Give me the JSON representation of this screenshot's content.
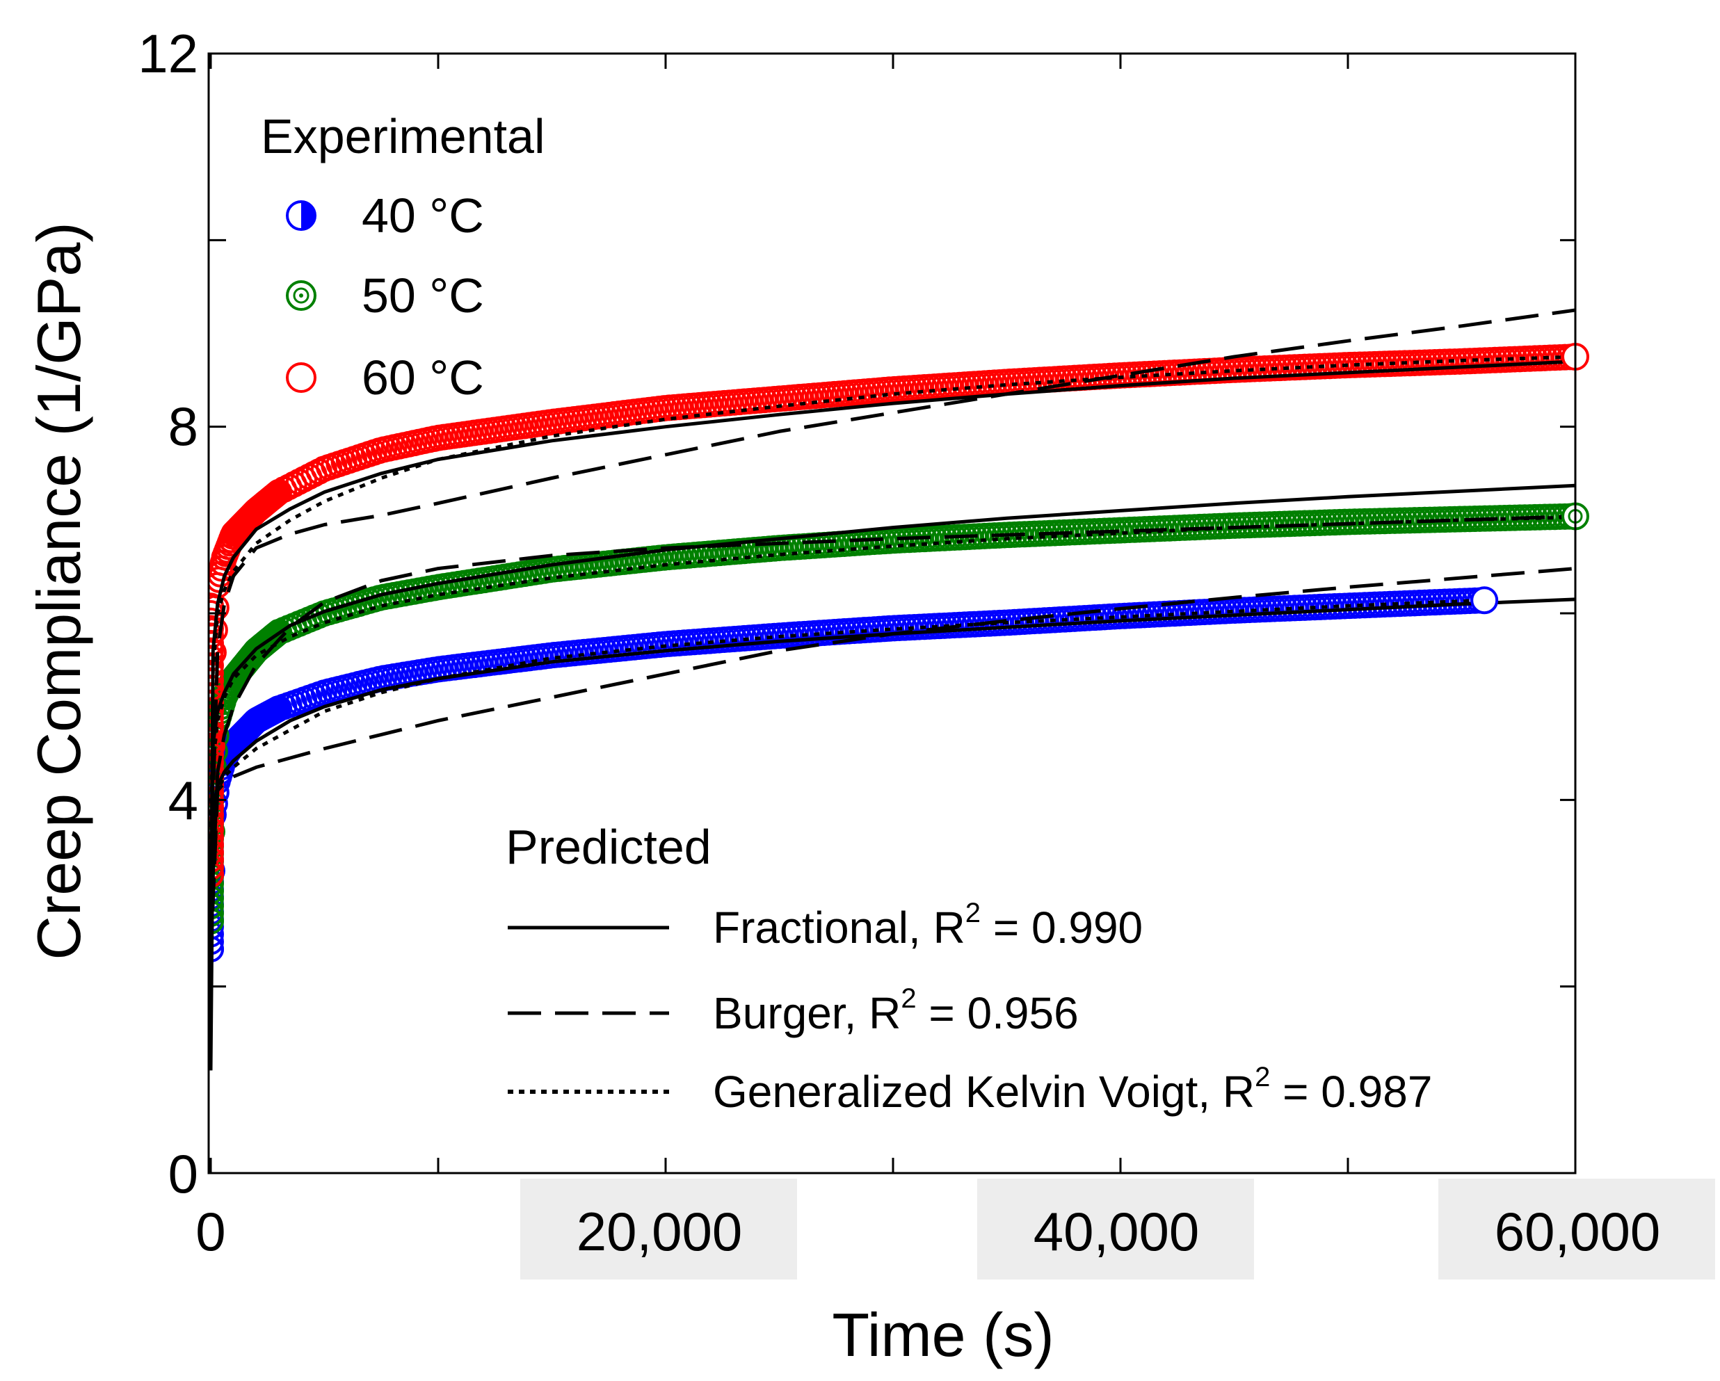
{
  "chart_data": {
    "type": "scatter",
    "title": "",
    "xlabel": "Time (s)",
    "ylabel": "Creep Compliance (1/GPa)",
    "xlim": [
      0,
      60000
    ],
    "ylim": [
      0,
      12
    ],
    "x_ticks": [
      0,
      20000,
      40000,
      60000
    ],
    "x_tick_labels": [
      "0",
      "20,000",
      "40,000",
      "60,000"
    ],
    "x_minor_ticks": [
      10000,
      30000,
      50000
    ],
    "y_ticks": [
      0,
      4,
      8,
      12
    ],
    "y_tick_labels": [
      "0",
      "4",
      "8",
      "12"
    ],
    "y_minor_ticks": [
      2,
      6,
      10
    ],
    "grid": false,
    "experimental_legend": {
      "title": "Experimental",
      "placement": "top-left",
      "entries": [
        {
          "label": "40 °C",
          "color": "#0000ff",
          "marker": "half-filled-circle"
        },
        {
          "label": "50 °C",
          "color": "#008000",
          "marker": "dotted-circle"
        },
        {
          "label": "60 °C",
          "color": "#ff0000",
          "marker": "open-circle"
        }
      ]
    },
    "predicted_legend": {
      "title": "Predicted",
      "placement": "bottom-right",
      "entries": [
        {
          "model": "Fractional",
          "style": "solid",
          "prefix": "Fractional,  R",
          "r2": "0.990"
        },
        {
          "model": "Burger",
          "style": "dashed",
          "prefix": "Burger,  R",
          "r2": "0.956"
        },
        {
          "model": "Generalized Kelvin Voigt",
          "style": "dotted",
          "prefix": "Generalized Kelvin Voigt,  R",
          "r2": "0.987"
        }
      ]
    },
    "experimental_series": [
      {
        "name": "40 °C",
        "color": "#0000ff",
        "x": [
          0,
          100,
          300,
          600,
          1000,
          2000,
          3000,
          5000,
          7500,
          10000,
          15000,
          20000,
          25000,
          30000,
          35000,
          40000,
          45000,
          50000,
          56000
        ],
        "y": [
          2.4,
          3.8,
          4.2,
          4.45,
          4.6,
          4.85,
          4.98,
          5.15,
          5.3,
          5.4,
          5.55,
          5.67,
          5.76,
          5.84,
          5.9,
          5.97,
          6.03,
          6.08,
          6.14
        ]
      },
      {
        "name": "50 °C",
        "color": "#008000",
        "x": [
          0,
          100,
          300,
          600,
          1000,
          2000,
          3000,
          5000,
          7500,
          10000,
          15000,
          20000,
          25000,
          30000,
          35000,
          40000,
          45000,
          50000,
          55000,
          60000
        ],
        "y": [
          2.7,
          4.3,
          4.85,
          5.1,
          5.3,
          5.6,
          5.8,
          6.0,
          6.17,
          6.28,
          6.47,
          6.6,
          6.7,
          6.78,
          6.84,
          6.89,
          6.94,
          6.98,
          7.01,
          7.04
        ]
      },
      {
        "name": "60 °C",
        "color": "#ff0000",
        "x": [
          0,
          100,
          300,
          600,
          1000,
          2000,
          3000,
          5000,
          7500,
          10000,
          15000,
          20000,
          25000,
          30000,
          35000,
          40000,
          45000,
          50000,
          55000,
          60000
        ],
        "y": [
          3.2,
          5.5,
          6.3,
          6.6,
          6.85,
          7.1,
          7.3,
          7.55,
          7.75,
          7.88,
          8.05,
          8.2,
          8.3,
          8.4,
          8.48,
          8.55,
          8.61,
          8.66,
          8.7,
          8.75
        ]
      }
    ],
    "predicted_series": [
      {
        "model": "Fractional",
        "temp": "40 °C",
        "style": "solid",
        "x": [
          0,
          100,
          300,
          600,
          1000,
          2000,
          3500,
          5000,
          7500,
          10000,
          15000,
          20000,
          25000,
          30000,
          35000,
          40000,
          45000,
          50000,
          55000,
          60000
        ],
        "y": [
          1.1,
          3.9,
          4.15,
          4.3,
          4.42,
          4.63,
          4.85,
          5.0,
          5.18,
          5.3,
          5.48,
          5.6,
          5.7,
          5.78,
          5.85,
          5.92,
          5.98,
          6.04,
          6.1,
          6.15
        ]
      },
      {
        "model": "Fractional",
        "temp": "50 °C",
        "style": "solid",
        "x": [
          0,
          100,
          300,
          600,
          1000,
          2000,
          3500,
          5000,
          7500,
          10000,
          15000,
          20000,
          25000,
          30000,
          35000,
          40000,
          45000,
          50000,
          55000,
          60000
        ],
        "y": [
          1.8,
          4.6,
          4.95,
          5.15,
          5.35,
          5.62,
          5.87,
          6.02,
          6.2,
          6.32,
          6.52,
          6.68,
          6.8,
          6.92,
          7.02,
          7.1,
          7.18,
          7.25,
          7.31,
          7.37
        ]
      },
      {
        "model": "Fractional",
        "temp": "60 °C",
        "style": "solid",
        "x": [
          0,
          100,
          300,
          600,
          1000,
          2000,
          3500,
          5000,
          7500,
          10000,
          15000,
          20000,
          25000,
          30000,
          35000,
          40000,
          45000,
          50000,
          55000,
          60000
        ],
        "y": [
          2.5,
          5.6,
          6.1,
          6.4,
          6.6,
          6.9,
          7.12,
          7.3,
          7.5,
          7.65,
          7.85,
          8.0,
          8.13,
          8.25,
          8.35,
          8.44,
          8.52,
          8.58,
          8.64,
          8.7
        ]
      },
      {
        "model": "Burger",
        "temp": "40 °C",
        "style": "dashed",
        "x": [
          0,
          300,
          600,
          1000,
          2000,
          3500,
          5000,
          7500,
          10000,
          15000,
          20000,
          25000,
          30000,
          35000,
          40000,
          45000,
          50000,
          55000,
          60000
        ],
        "y": [
          2.3,
          4.1,
          4.18,
          4.25,
          4.35,
          4.45,
          4.55,
          4.7,
          4.85,
          5.1,
          5.35,
          5.6,
          5.78,
          5.92,
          6.05,
          6.17,
          6.28,
          6.38,
          6.48
        ]
      },
      {
        "model": "Burger",
        "temp": "50 °C",
        "style": "dashed",
        "x": [
          0,
          300,
          600,
          1000,
          2000,
          3500,
          5000,
          7500,
          10000,
          15000,
          20000,
          25000,
          30000,
          35000,
          40000,
          45000,
          50000,
          55000,
          60000
        ],
        "y": [
          2.6,
          4.3,
          4.7,
          5.0,
          5.45,
          5.85,
          6.12,
          6.35,
          6.48,
          6.62,
          6.7,
          6.75,
          6.8,
          6.84,
          6.88,
          6.92,
          6.96,
          7.0,
          7.04
        ]
      },
      {
        "model": "Burger",
        "temp": "60 °C",
        "style": "dashed",
        "x": [
          0,
          300,
          600,
          1000,
          2000,
          3500,
          5000,
          7500,
          10000,
          15000,
          20000,
          25000,
          30000,
          35000,
          40000,
          45000,
          50000,
          55000,
          60000
        ],
        "y": [
          3.2,
          5.6,
          6.1,
          6.4,
          6.7,
          6.85,
          6.95,
          7.05,
          7.18,
          7.45,
          7.7,
          7.95,
          8.15,
          8.35,
          8.55,
          8.75,
          8.92,
          9.08,
          9.25
        ]
      },
      {
        "model": "Generalized Kelvin Voigt",
        "temp": "40 °C",
        "style": "dotted",
        "x": [
          0,
          100,
          300,
          600,
          1000,
          2000,
          3500,
          5000,
          7500,
          10000,
          15000,
          20000,
          25000,
          30000,
          35000,
          40000,
          45000,
          50000,
          56000
        ],
        "y": [
          2.4,
          3.9,
          4.1,
          4.25,
          4.35,
          4.55,
          4.75,
          4.95,
          5.15,
          5.3,
          5.52,
          5.65,
          5.75,
          5.83,
          5.9,
          5.96,
          6.02,
          6.08,
          6.14
        ]
      },
      {
        "model": "Generalized Kelvin Voigt",
        "temp": "50 °C",
        "style": "dotted",
        "x": [
          0,
          100,
          300,
          600,
          1000,
          2000,
          3500,
          5000,
          7500,
          10000,
          15000,
          20000,
          25000,
          30000,
          35000,
          40000,
          45000,
          50000,
          55000,
          60000
        ],
        "y": [
          2.7,
          4.4,
          4.85,
          5.1,
          5.3,
          5.55,
          5.75,
          5.9,
          6.08,
          6.2,
          6.38,
          6.52,
          6.63,
          6.72,
          6.8,
          6.86,
          6.92,
          6.96,
          7.0,
          7.03
        ]
      },
      {
        "model": "Generalized Kelvin Voigt",
        "temp": "60 °C",
        "style": "dotted",
        "x": [
          0,
          100,
          300,
          600,
          1000,
          2000,
          3500,
          5000,
          7500,
          10000,
          15000,
          20000,
          25000,
          30000,
          35000,
          40000,
          45000,
          50000,
          55000,
          60000
        ],
        "y": [
          3.2,
          5.4,
          6.0,
          6.25,
          6.45,
          6.75,
          7.0,
          7.2,
          7.45,
          7.65,
          7.9,
          8.08,
          8.22,
          8.35,
          8.45,
          8.53,
          8.6,
          8.66,
          8.71,
          8.75
        ]
      }
    ]
  }
}
